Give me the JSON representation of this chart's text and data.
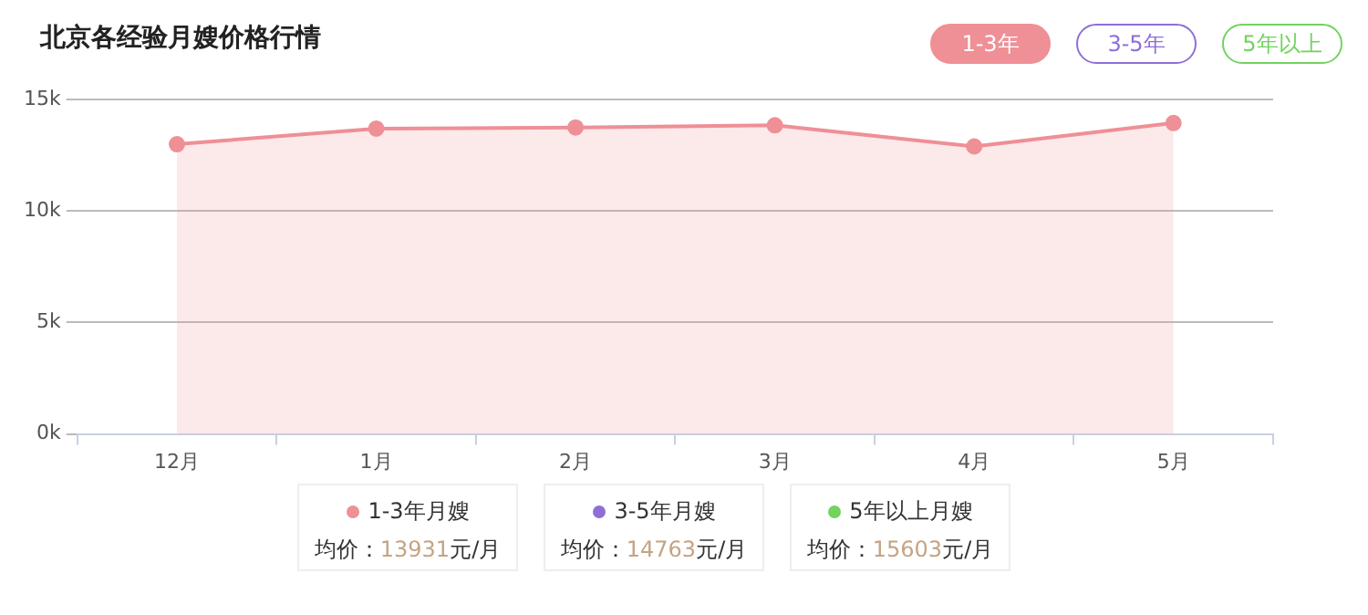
{
  "chart_data": {
    "type": "area",
    "title": "北京各经验月嫂价格行情",
    "categories": [
      "12月",
      "1月",
      "2月",
      "3月",
      "4月",
      "5月"
    ],
    "series": [
      {
        "name": "1-3年月嫂",
        "color": "#ef8f96",
        "values": [
          13000,
          13700,
          13750,
          13850,
          12900,
          13950
        ]
      },
      {
        "name": "3-5年月嫂",
        "color": "#8e6fd8",
        "values": [
          null,
          null,
          null,
          null,
          null,
          null
        ]
      },
      {
        "name": "5年以上月嫂",
        "color": "#72d35f",
        "values": [
          null,
          null,
          null,
          null,
          null,
          null
        ]
      }
    ],
    "ylim": [
      0,
      15000
    ],
    "yticks": [
      {
        "value": 0,
        "label": "0k"
      },
      {
        "value": 5000,
        "label": "5k"
      },
      {
        "value": 10000,
        "label": "10k"
      },
      {
        "value": 15000,
        "label": "15k"
      }
    ],
    "grid": "y",
    "legend": "bottom",
    "marker": "circle",
    "annotations": [
      "1-3年",
      "3-5年",
      "5年以上",
      "均价：",
      "13931",
      "元/月",
      "均价：",
      "14763",
      "元/月",
      "均价：",
      "15603",
      "元/月"
    ]
  }
}
